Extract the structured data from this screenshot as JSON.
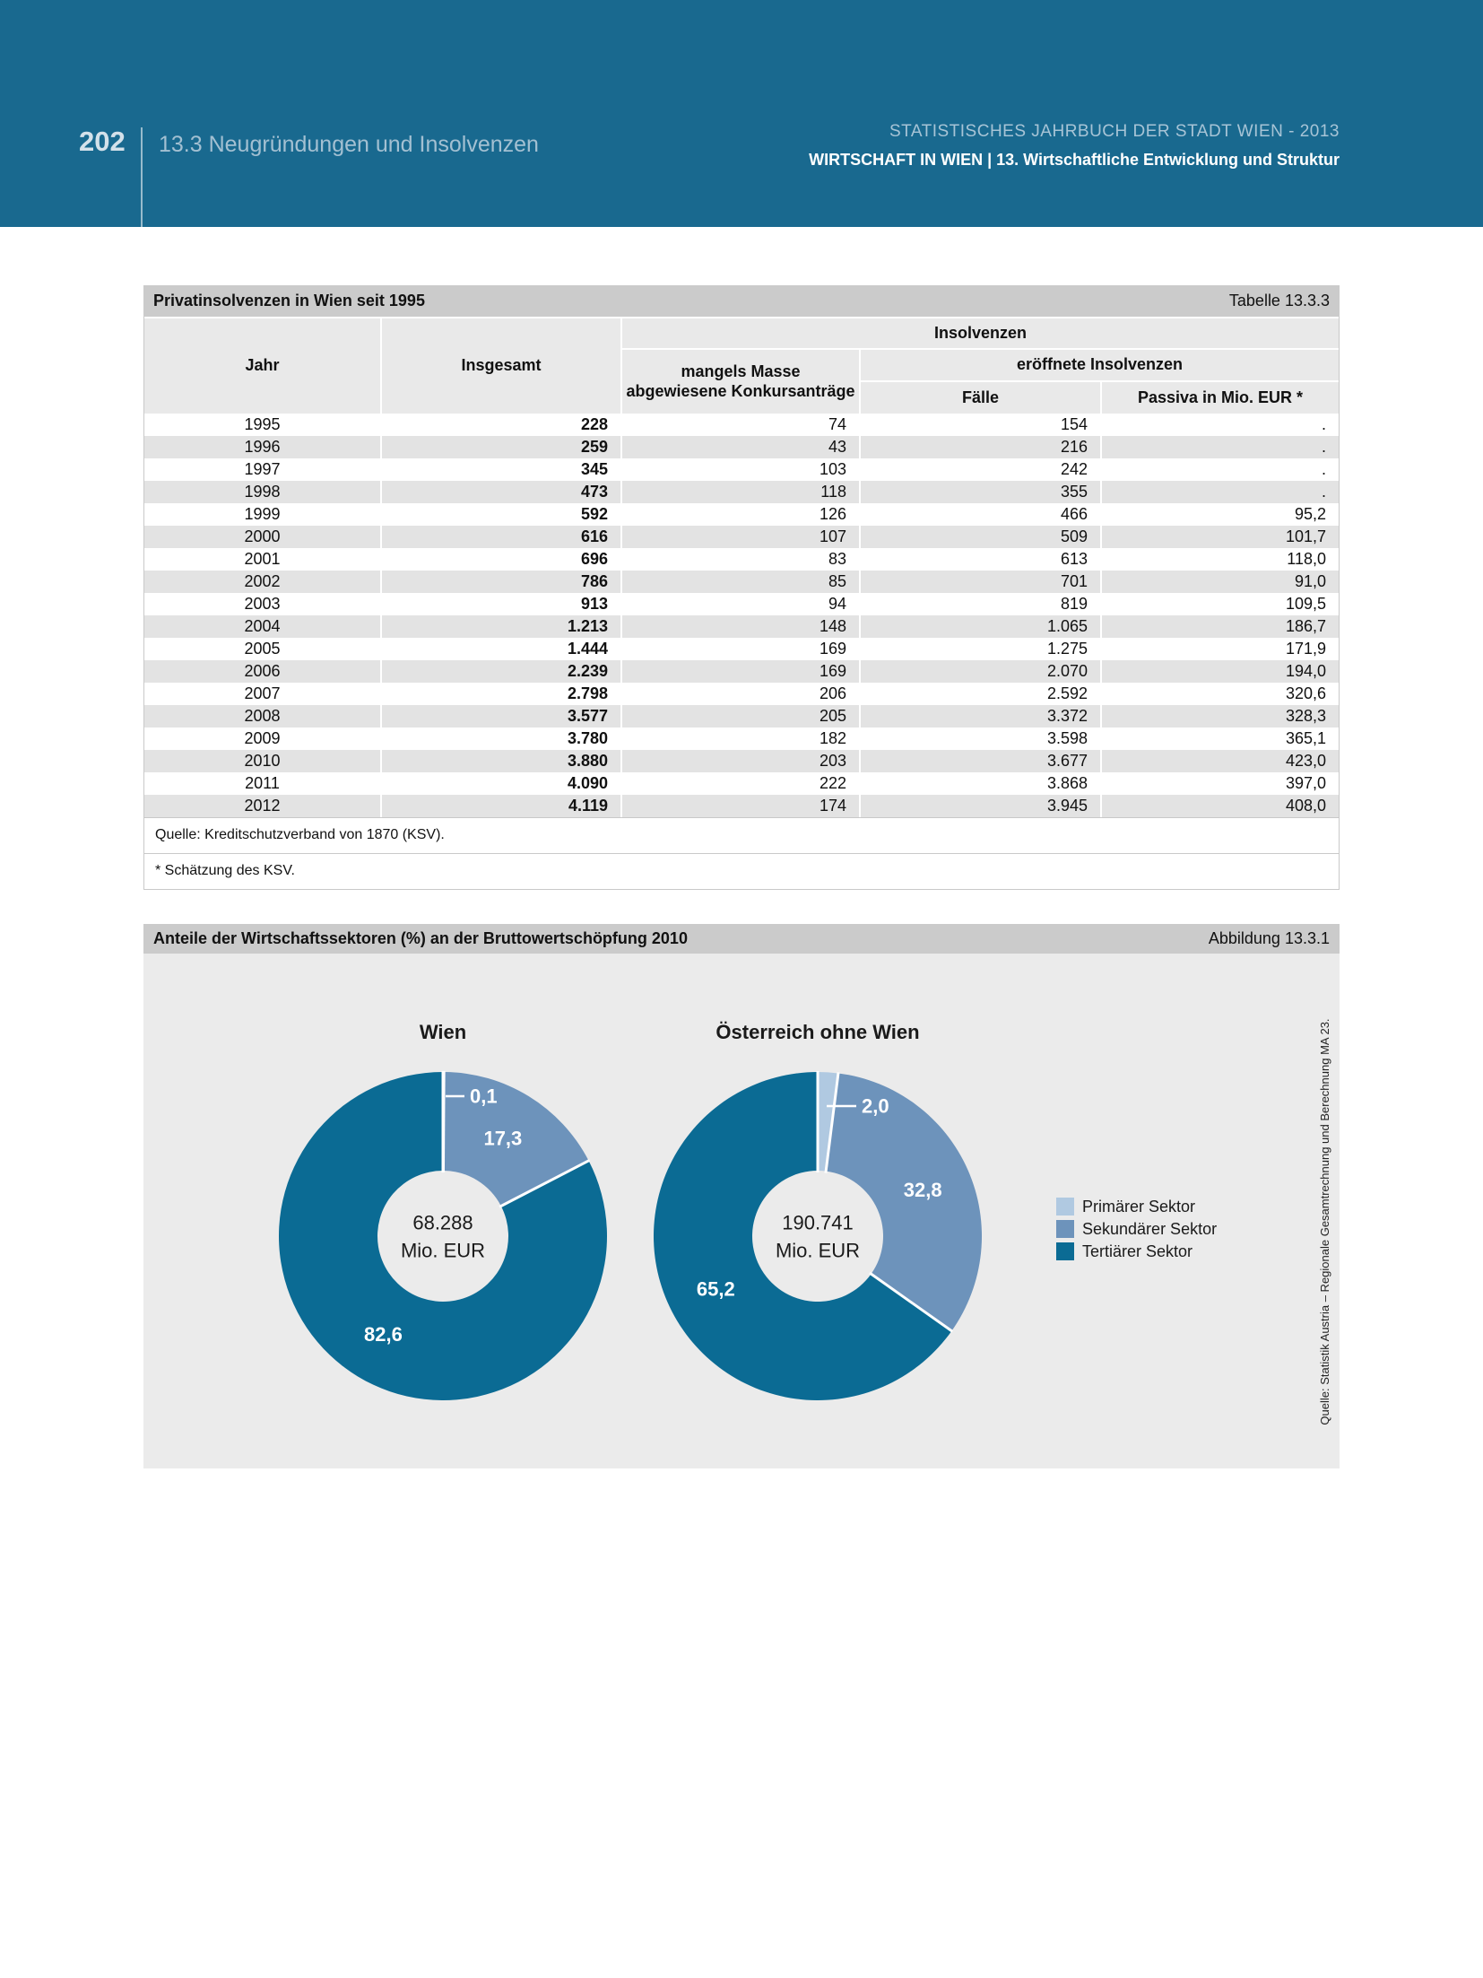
{
  "page": {
    "number": "202",
    "section": "13.3 Neugründungen und Insolvenzen",
    "yearbook": "STATISTISCHES JAHRBUCH DER STADT WIEN - 2013",
    "chapter": "WIRTSCHAFT IN WIEN | 13. Wirtschaftliche Entwicklung und Struktur"
  },
  "colors": {
    "header_blue": "#19698f",
    "title_band_grey": "#cbcbcb",
    "header_cell_grey": "#e9e9e9",
    "row_stripe_grey": "#e3e3e3",
    "panel_grey": "#ebebeb",
    "sector_primary": "#b0c9e1",
    "sector_secondary": "#6d93bb",
    "sector_tertiary": "#0b6b94"
  },
  "table": {
    "title": "Privatinsolvenzen in Wien seit 1995",
    "ref": "Tabelle 13.3.3",
    "col_jahr": "Jahr",
    "col_insgesamt": "Insgesamt",
    "group_insolvenzen": "Insolvenzen",
    "col_mangels": "mangels Masse\nabgewiesene Konkursanträge",
    "group_eroeffnete": "eröffnete Insolvenzen",
    "col_faelle": "Fälle",
    "col_passiva": "Passiva in Mio. EUR *",
    "rows": [
      [
        "1995",
        "228",
        "74",
        "154",
        "."
      ],
      [
        "1996",
        "259",
        "43",
        "216",
        "."
      ],
      [
        "1997",
        "345",
        "103",
        "242",
        "."
      ],
      [
        "1998",
        "473",
        "118",
        "355",
        "."
      ],
      [
        "1999",
        "592",
        "126",
        "466",
        "95,2"
      ],
      [
        "2000",
        "616",
        "107",
        "509",
        "101,7"
      ],
      [
        "2001",
        "696",
        "83",
        "613",
        "118,0"
      ],
      [
        "2002",
        "786",
        "85",
        "701",
        "91,0"
      ],
      [
        "2003",
        "913",
        "94",
        "819",
        "109,5"
      ],
      [
        "2004",
        "1.213",
        "148",
        "1.065",
        "186,7"
      ],
      [
        "2005",
        "1.444",
        "169",
        "1.275",
        "171,9"
      ],
      [
        "2006",
        "2.239",
        "169",
        "2.070",
        "194,0"
      ],
      [
        "2007",
        "2.798",
        "206",
        "2.592",
        "320,6"
      ],
      [
        "2008",
        "3.577",
        "205",
        "3.372",
        "328,3"
      ],
      [
        "2009",
        "3.780",
        "182",
        "3.598",
        "365,1"
      ],
      [
        "2010",
        "3.880",
        "203",
        "3.677",
        "423,0"
      ],
      [
        "2011",
        "4.090",
        "222",
        "3.868",
        "397,0"
      ],
      [
        "2012",
        "4.119",
        "174",
        "3.945",
        "408,0"
      ]
    ],
    "source": "Quelle: Kreditschutzverband von 1870 (KSV).",
    "footnote": "* Schätzung des KSV."
  },
  "figure": {
    "title": "Anteile der Wirtschaftssektoren (%) an der Bruttowertschöpfung 2010",
    "ref": "Abbildung 13.3.1",
    "source_vertical": "Quelle: Statistik Austria – Regionale Gesamtrechnung und Berechnung MA 23."
  },
  "chart_data": {
    "type": "pie",
    "subtype": "donut",
    "unit": "%",
    "title": "Anteile der Wirtschaftssektoren (%) an der Bruttowertschöpfung 2010",
    "legend_position": "right",
    "legend": [
      {
        "label": "Primärer Sektor",
        "color": "#b0c9e1"
      },
      {
        "label": "Sekundärer Sektor",
        "color": "#6d93bb"
      },
      {
        "label": "Tertiärer Sektor",
        "color": "#0b6b94"
      }
    ],
    "charts": [
      {
        "title": "Wien",
        "center_value": "68.288",
        "center_unit": "Mio. EUR",
        "slices": [
          {
            "sector": "Primärer Sektor",
            "value": 0.1,
            "label": "0,1"
          },
          {
            "sector": "Sekundärer Sektor",
            "value": 17.3,
            "label": "17,3"
          },
          {
            "sector": "Tertiärer Sektor",
            "value": 82.6,
            "label": "82,6"
          }
        ]
      },
      {
        "title": "Österreich ohne Wien",
        "center_value": "190.741",
        "center_unit": "Mio. EUR",
        "slices": [
          {
            "sector": "Primärer Sektor",
            "value": 2.0,
            "label": "2,0"
          },
          {
            "sector": "Sekundärer Sektor",
            "value": 32.8,
            "label": "32,8"
          },
          {
            "sector": "Tertiärer Sektor",
            "value": 65.2,
            "label": "65,2"
          }
        ]
      }
    ]
  }
}
